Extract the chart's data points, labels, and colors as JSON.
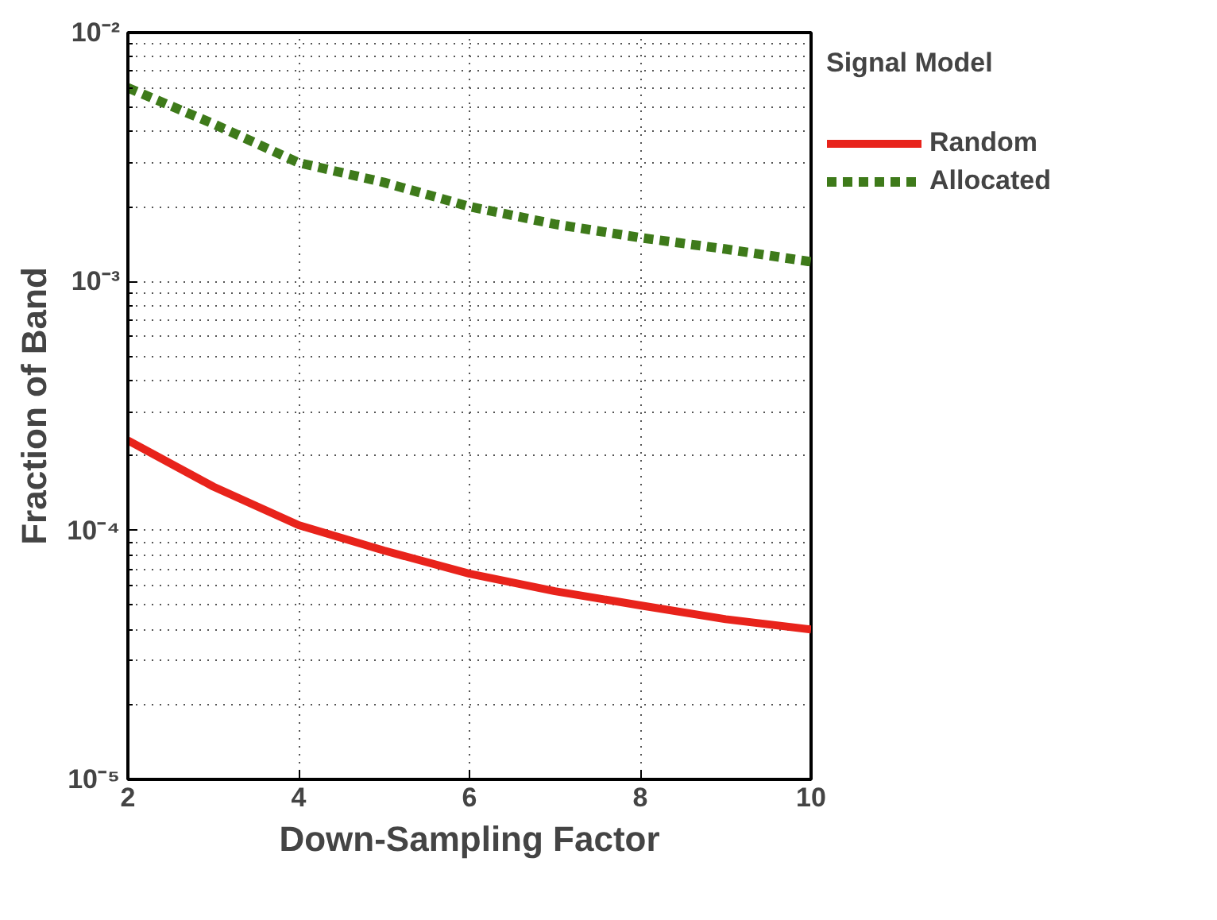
{
  "chart_data": {
    "type": "line",
    "xlabel": "Down-Sampling Factor",
    "ylabel": "Fraction of Band",
    "legend_title": "Signal Model",
    "x": [
      2,
      3,
      4,
      5,
      6,
      7,
      8,
      9,
      10
    ],
    "series": [
      {
        "name": "Random",
        "color": "#e8231b",
        "line_style": "solid",
        "values": [
          0.00023,
          0.00015,
          0.000105,
          8.3e-05,
          6.7e-05,
          5.7e-05,
          5e-05,
          4.4e-05,
          4e-05
        ]
      },
      {
        "name": "Allocated",
        "color": "#3e7a1a",
        "line_style": "dashed",
        "values": [
          0.006,
          0.0043,
          0.003,
          0.0025,
          0.002,
          0.0017,
          0.0015,
          0.00135,
          0.0012
        ]
      }
    ],
    "log": "y",
    "xlim": [
      2,
      10
    ],
    "ylim": [
      1e-05,
      0.01
    ],
    "xticks": [
      2,
      4,
      6,
      8,
      10
    ],
    "yticks": [
      {
        "value": 1e-05,
        "label": "10⁻⁵"
      },
      {
        "value": 0.0001,
        "label": "10⁻⁴"
      },
      {
        "value": 0.001,
        "label": "10⁻³"
      },
      {
        "value": 0.01,
        "label": "10⁻²"
      }
    ],
    "grid": true,
    "legend": "right",
    "marker": "none"
  }
}
